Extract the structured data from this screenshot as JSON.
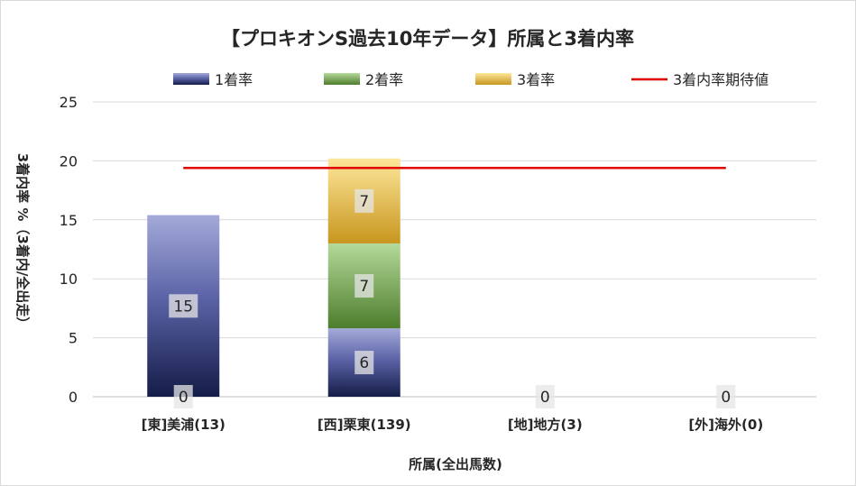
{
  "chart_data": {
    "type": "bar",
    "stacked": true,
    "title": "【プロキオンS過去10年データ】所属と3着内率",
    "xlabel": "所属(全出馬数)",
    "ylabel": "3着内率 %（3着内/全出走）",
    "ylim": [
      0,
      25
    ],
    "yticks": [
      0,
      5,
      10,
      15,
      20,
      25
    ],
    "grid": true,
    "legend_position": "top",
    "categories": [
      "[東]美浦(13)",
      "[西]栗東(139)",
      "[地]地方(3)",
      "[外]海外(0)"
    ],
    "series": [
      {
        "name": "1着率",
        "values": [
          15.4,
          5.8,
          0,
          0
        ],
        "labels": [
          "15",
          "6",
          "0",
          "0"
        ],
        "color": "#2c3580"
      },
      {
        "name": "2着率",
        "values": [
          0,
          7.2,
          0,
          0
        ],
        "labels": [
          "",
          "7",
          "",
          ""
        ],
        "color": "#5a8a35"
      },
      {
        "name": "3着率",
        "values": [
          0,
          7.2,
          0,
          0
        ],
        "labels": [
          "0",
          "7",
          "",
          ""
        ],
        "color": "#d4a52c"
      }
    ],
    "reference_line": {
      "name": "3着内率期待値",
      "value": 19.4,
      "color": "#e00000"
    }
  }
}
